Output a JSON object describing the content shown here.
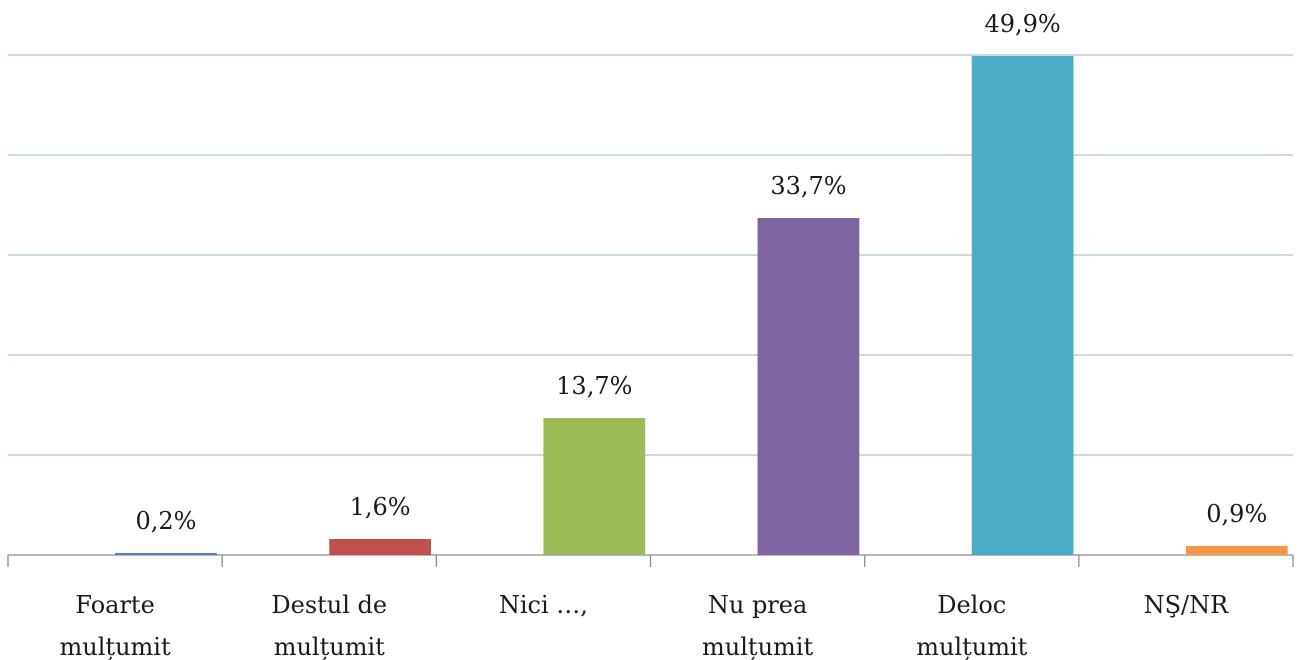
{
  "chart_data": {
    "type": "bar",
    "categories": [
      "Foarte mulțumit",
      "Destul de mulțumit",
      "Nici …,",
      "Nu prea mulțumit",
      "Deloc mulțumit",
      "NŞ/NR"
    ],
    "values": [
      0.2,
      1.6,
      13.7,
      33.7,
      49.9,
      0.9
    ],
    "value_labels": [
      "0,2%",
      "1,6%",
      "13,7%",
      "33,7%",
      "49,9%",
      "0,9%"
    ],
    "colors": [
      "#4f81bd",
      "#c0504d",
      "#9bbb59",
      "#8064a2",
      "#4bacc6",
      "#f79646"
    ],
    "ylim": [
      0,
      50
    ],
    "yticks": [
      0,
      10,
      20,
      30,
      40,
      50
    ],
    "grid": true
  }
}
